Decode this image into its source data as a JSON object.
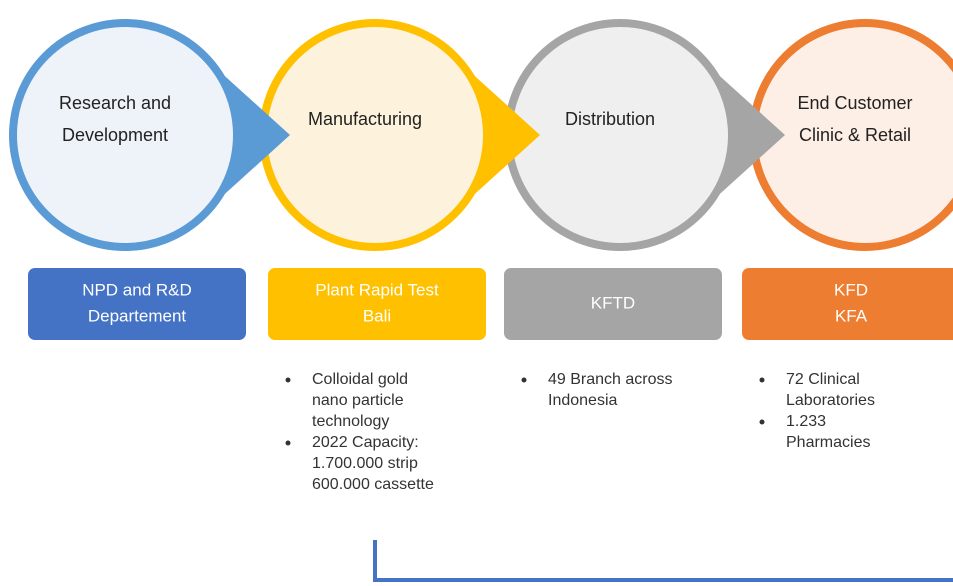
{
  "stages": [
    {
      "circle": [
        "Research and",
        "Development"
      ],
      "box": [
        "NPD and R&D",
        "Departement"
      ],
      "bullets": []
    },
    {
      "circle": [
        "Manufacturing"
      ],
      "box": [
        "Plant Rapid Test",
        "Bali"
      ],
      "bullets": [
        [
          "Colloidal gold",
          "nano particle",
          "technology"
        ],
        [
          "2022 Capacity:",
          "1.700.000 strip",
          "600.000 cassette"
        ]
      ]
    },
    {
      "circle": [
        "Distribution"
      ],
      "box": [
        "KFTD"
      ],
      "bullets": [
        [
          "49 Branch across",
          "Indonesia"
        ]
      ]
    },
    {
      "circle": [
        "End Customer",
        "Clinic & Retail"
      ],
      "box": [
        "KFD",
        "KFA"
      ],
      "bullets": [
        [
          "72 Clinical",
          "Laboratories"
        ],
        [
          "1.233",
          "Pharmacies"
        ]
      ]
    }
  ]
}
